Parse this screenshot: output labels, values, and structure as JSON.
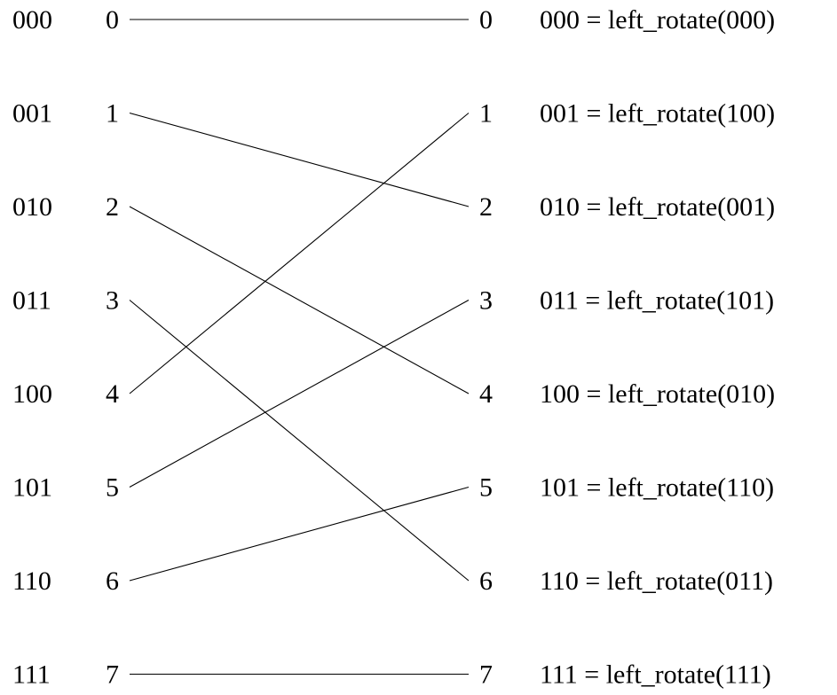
{
  "nodes": [
    {
      "binary": "000",
      "index": "0",
      "output": "0",
      "equation": "000 = left_rotate(000)"
    },
    {
      "binary": "001",
      "index": "1",
      "output": "1",
      "equation": "001 = left_rotate(100)"
    },
    {
      "binary": "010",
      "index": "2",
      "output": "2",
      "equation": "010 = left_rotate(001)"
    },
    {
      "binary": "011",
      "index": "3",
      "output": "3",
      "equation": "011 = left_rotate(101)"
    },
    {
      "binary": "100",
      "index": "4",
      "output": "4",
      "equation": "100 = left_rotate(010)"
    },
    {
      "binary": "101",
      "index": "5",
      "output": "5",
      "equation": "101 = left_rotate(110)"
    },
    {
      "binary": "110",
      "index": "6",
      "output": "6",
      "equation": "110 = left_rotate(011)"
    },
    {
      "binary": "111",
      "index": "7",
      "output": "7",
      "equation": "111 = left_rotate(111)"
    }
  ],
  "connections": [
    {
      "from": 0,
      "to": 0
    },
    {
      "from": 1,
      "to": 2
    },
    {
      "from": 2,
      "to": 4
    },
    {
      "from": 3,
      "to": 6
    },
    {
      "from": 4,
      "to": 1
    },
    {
      "from": 5,
      "to": 3
    },
    {
      "from": 6,
      "to": 5
    },
    {
      "from": 7,
      "to": 7
    }
  ]
}
